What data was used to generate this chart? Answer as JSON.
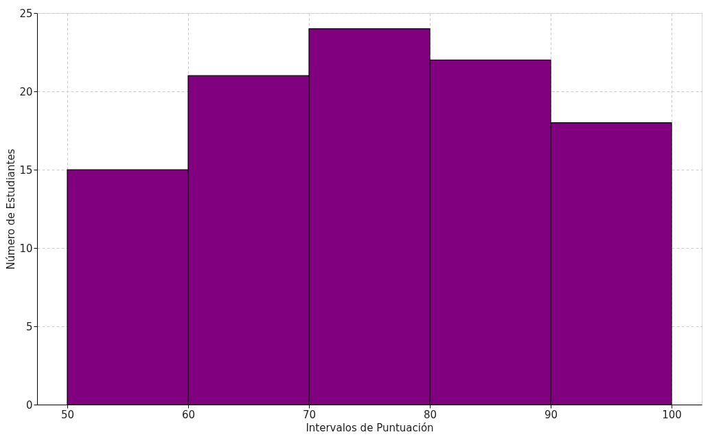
{
  "chart_data": {
    "type": "histogram",
    "xlabel": "Intervalos de Puntuación",
    "ylabel": "Número de Estudiantes",
    "bins": [
      50,
      60,
      70,
      80,
      90,
      100
    ],
    "values": [
      15,
      21,
      24,
      22,
      18
    ],
    "color": "#800080",
    "xlim": [
      47.5,
      102.5
    ],
    "xticks": [
      50,
      60,
      70,
      80,
      90,
      100
    ],
    "ylim": [
      0,
      25
    ],
    "yticks": [
      0,
      5,
      10,
      15,
      20,
      25
    ],
    "grid": true
  }
}
